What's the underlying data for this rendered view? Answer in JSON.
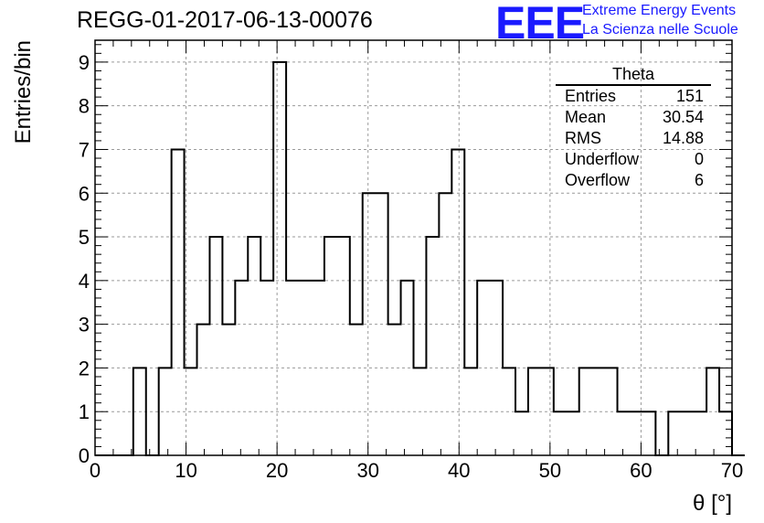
{
  "title": "REGG-01-2017-06-13-00076",
  "logo": {
    "mark": "EEE",
    "line1": "Extreme Energy Events",
    "line2": "La Scienza nelle Scuole",
    "color": "#1a1aff"
  },
  "stats_box": {
    "name": "Theta",
    "rows": [
      {
        "label": "Entries",
        "value": "151"
      },
      {
        "label": "Mean",
        "value": "30.54"
      },
      {
        "label": "RMS",
        "value": "14.88"
      },
      {
        "label": "Underflow",
        "value": "0"
      },
      {
        "label": "Overflow",
        "value": "6"
      }
    ]
  },
  "chart_data": {
    "type": "bar",
    "subtype": "step-histogram",
    "xlabel": "θ [°]",
    "ylabel": "Entries/bin",
    "xlim": [
      0,
      70
    ],
    "ylim": [
      0,
      9.5
    ],
    "bin_width": 1.4,
    "bin_start": 0,
    "values": [
      0,
      0,
      0,
      2,
      0,
      2,
      7,
      2,
      3,
      5,
      3,
      4,
      5,
      4,
      9,
      4,
      4,
      4,
      5,
      5,
      3,
      6,
      6,
      3,
      4,
      2,
      5,
      6,
      7,
      2,
      4,
      4,
      2,
      1,
      2,
      2,
      1,
      1,
      2,
      2,
      2,
      1,
      1,
      1,
      0,
      1,
      1,
      1,
      2,
      1,
      0
    ],
    "x_ticks": [
      "0",
      "10",
      "20",
      "30",
      "40",
      "50",
      "60",
      "70"
    ],
    "y_ticks": [
      "0",
      "1",
      "2",
      "3",
      "4",
      "5",
      "6",
      "7",
      "8",
      "9"
    ],
    "grid": true
  }
}
